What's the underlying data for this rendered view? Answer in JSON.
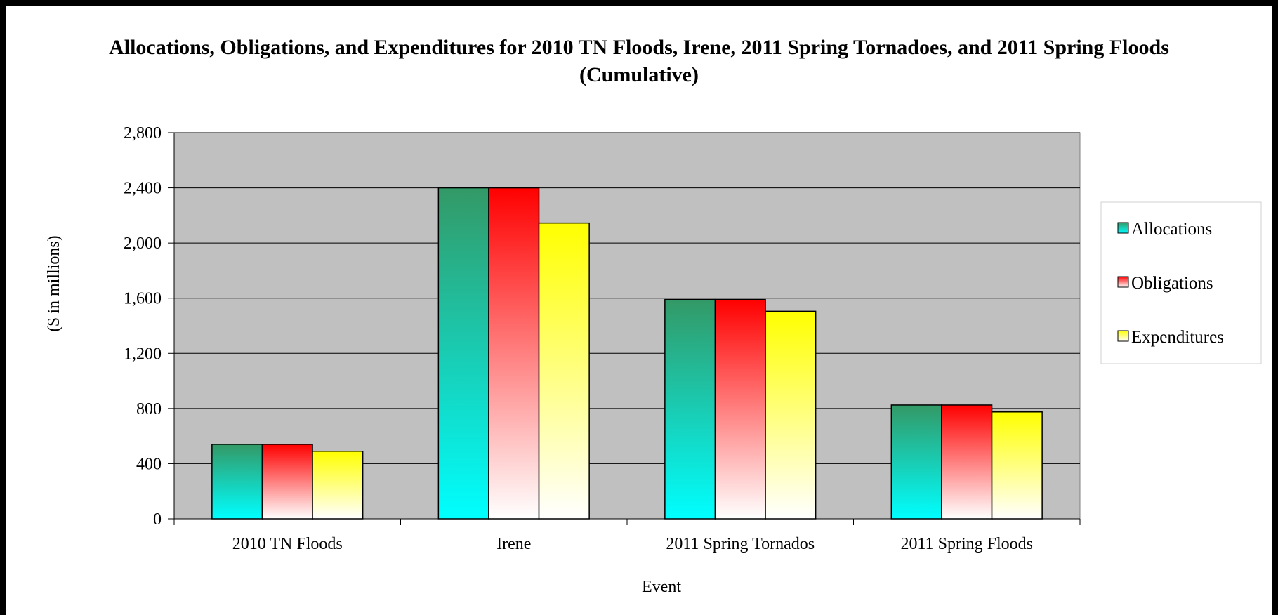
{
  "chart_data": {
    "type": "bar",
    "title": "Allocations, Obligations, and Expenditures for 2010 TN Floods, Irene, 2011 Spring Tornadoes, and 2011 Spring Floods",
    "subtitle": "(Cumulative)",
    "xlabel": "Event",
    "ylabel": "($ in millions)",
    "categories": [
      "2010 TN Floods",
      "Irene",
      "2011 Spring Tornados",
      "2011 Spring Floods"
    ],
    "series": [
      {
        "name": "Allocations",
        "values": [
          540,
          2400,
          1590,
          825
        ],
        "color_top": "#339966",
        "color_bottom": "#00ffff"
      },
      {
        "name": "Obligations",
        "values": [
          540,
          2400,
          1590,
          825
        ],
        "color_top": "#ff0000",
        "color_bottom": "#ffffff"
      },
      {
        "name": "Expenditures",
        "values": [
          490,
          2145,
          1505,
          775
        ],
        "color_top": "#ffff00",
        "color_bottom": "#ffffff"
      }
    ],
    "ylim": [
      0,
      2800
    ],
    "yticks": [
      0,
      400,
      800,
      1200,
      1600,
      2000,
      2400,
      2800
    ],
    "ytick_labels": [
      "0",
      "400",
      "800",
      "1,200",
      "1,600",
      "2,000",
      "2,400",
      "2,800"
    ],
    "grid": true,
    "plot_background": "#c0c0c0",
    "legend_position": "right"
  }
}
